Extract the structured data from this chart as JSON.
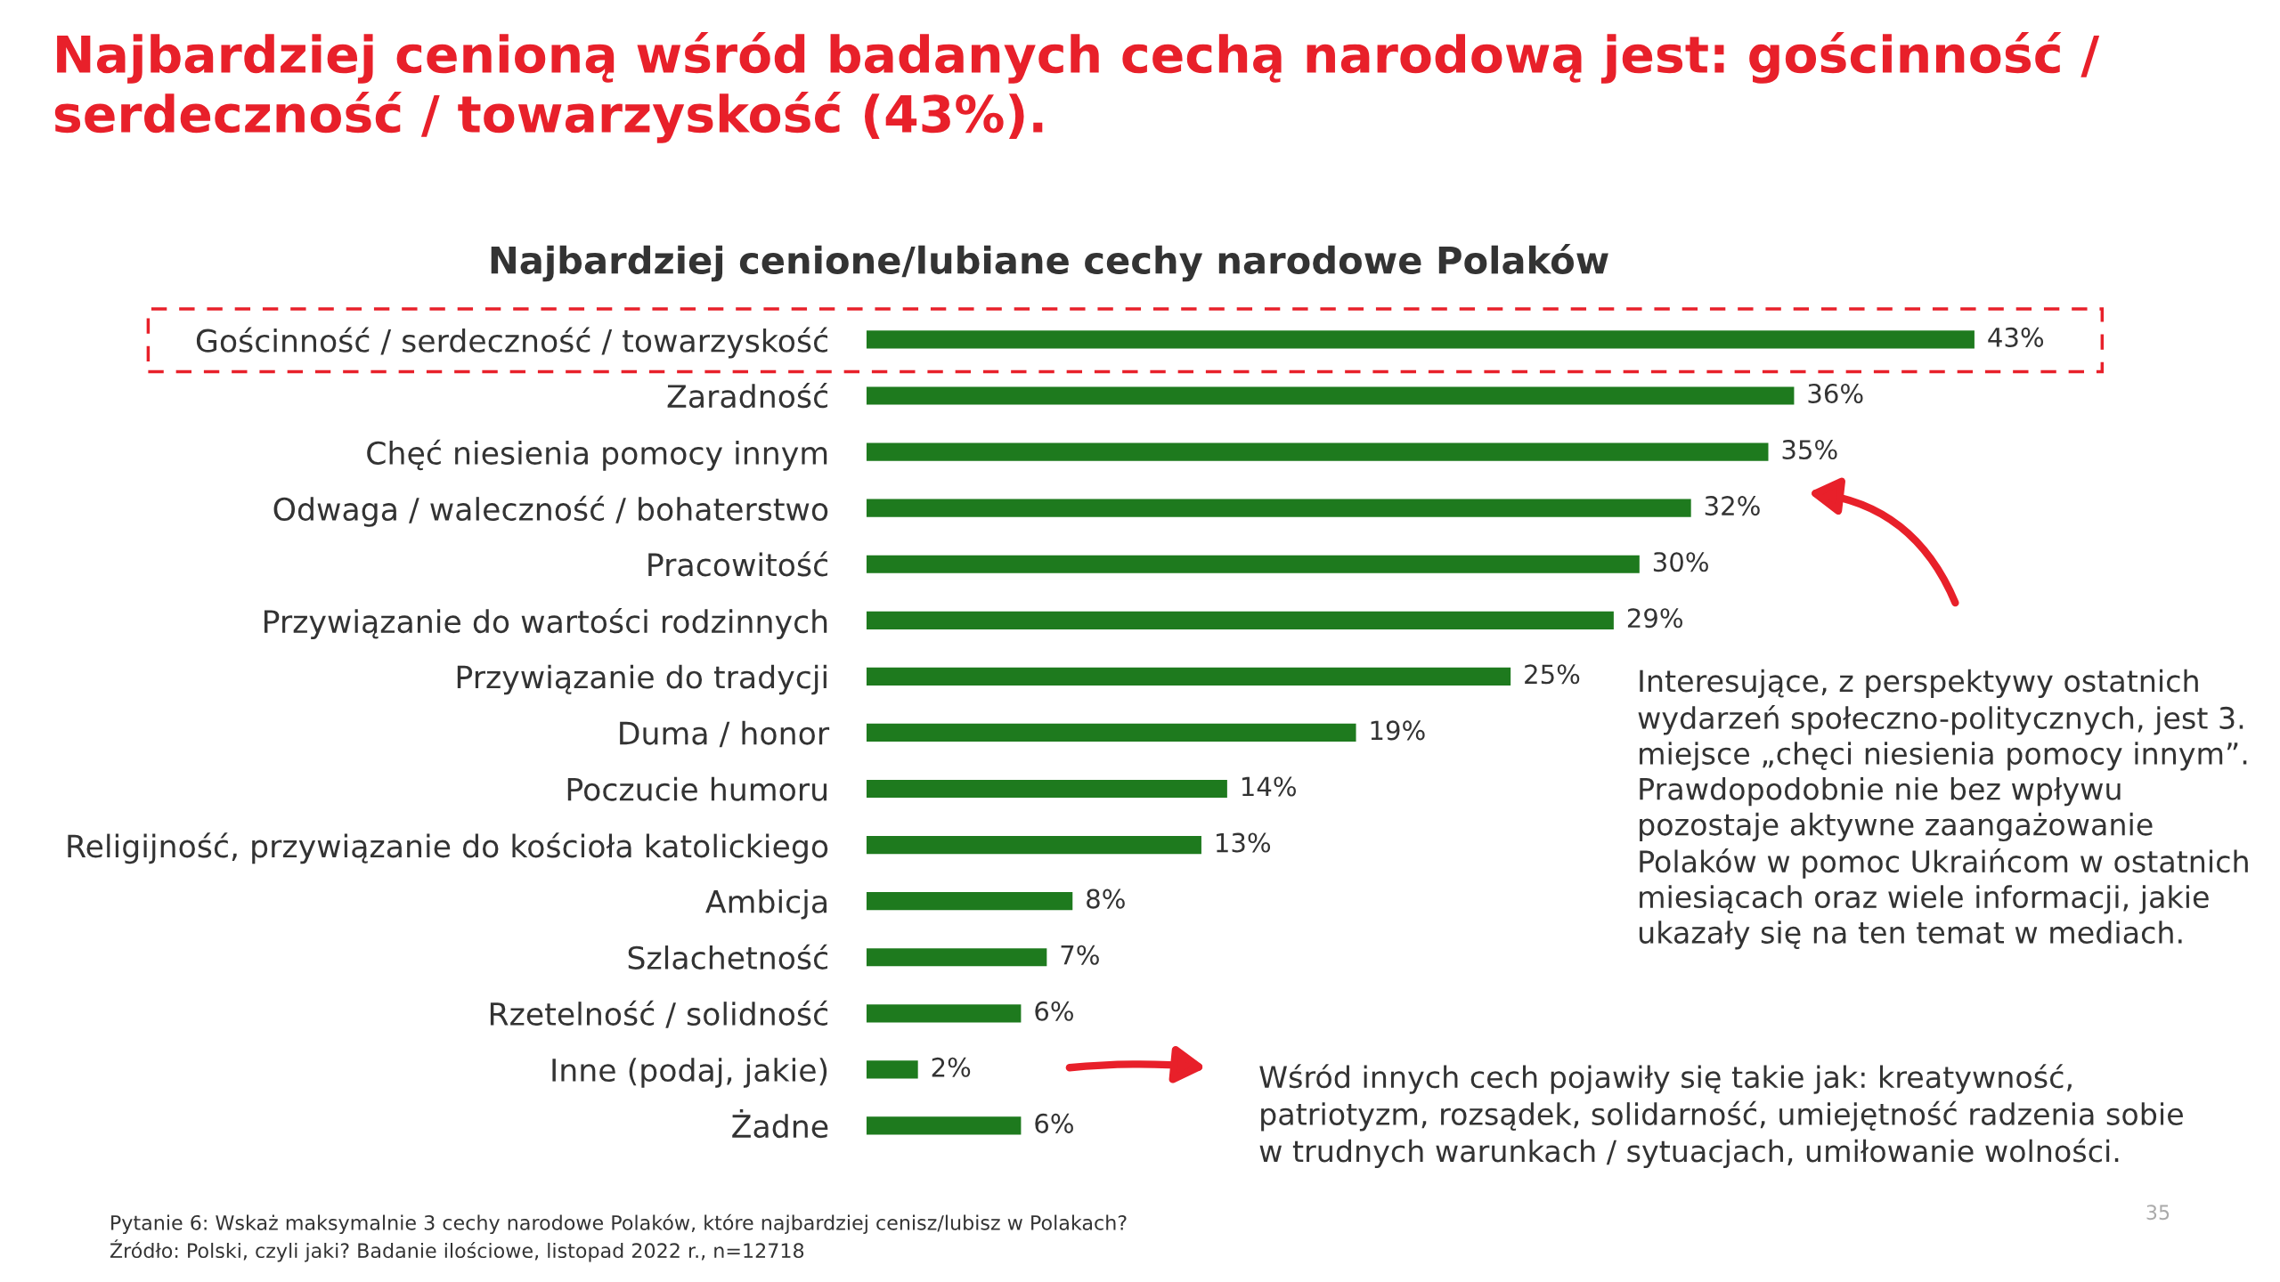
{
  "chart_data": {
    "type": "bar",
    "orientation": "horizontal",
    "title": "Najbardziej cenioną wśród badanych cechą narodową jest: gościnność / serdeczność / towarzyskość (43%).",
    "subtitle": "Najbardziej cenione/lubiane cechy narodowe Polaków",
    "categories": [
      "Gościnność / serdeczność / towarzyskość",
      "Zaradność",
      "Chęć niesienia pomocy innym",
      "Odwaga / waleczność / bohaterstwo",
      "Pracowitość",
      "Przywiązanie do wartości rodzinnych",
      "Przywiązanie do tradycji",
      "Duma / honor",
      "Poczucie humoru",
      "Religijność, przywiązanie do kościoła katolickiego",
      "Ambicja",
      "Szlachetność",
      "Rzetelność / solidność",
      "Inne (podaj, jakie)",
      "Żadne"
    ],
    "values": [
      43,
      36,
      35,
      32,
      30,
      29,
      25,
      19,
      14,
      13,
      8,
      7,
      6,
      2,
      6
    ],
    "value_labels": [
      "43%",
      "36%",
      "35%",
      "32%",
      "30%",
      "29%",
      "25%",
      "19%",
      "14%",
      "13%",
      "8%",
      "7%",
      "6%",
      "2%",
      "6%"
    ],
    "color": "#1e7a1e",
    "grid": false,
    "legend": false,
    "annotations": [
      "Interesujące, z perspektywy ostatnich\nwydarzeń społeczno-politycznych, jest 3.\nmiejsce „chęci niesienia pomocy innym”.\nPrawdopodobnie nie bez wpływu\npozostaje aktywne zaangażowanie\nPolaków w pomoc Ukraińcom w ostatnich\nmiesiącach oraz wiele informacji, jakie\nukazały się na ten temat w mediach.",
      "Wśród innych cech pojawiły się takie jak: kreatywność,\npatriotyzm, rozsądek, solidarność, umiejętność radzenia sobie\nw trudnych warunkach / sytuacjach, umiłowanie wolności.",
      "Pytanie 6: Wskaż maksymalnie 3 cechy narodowe Polaków, które najbardziej cenisz/lubisz w Polakach?\nŹródło: Polski, czyli jaki? Badanie ilościowe, listopad 2022 r., n=12718",
      "35"
    ]
  }
}
